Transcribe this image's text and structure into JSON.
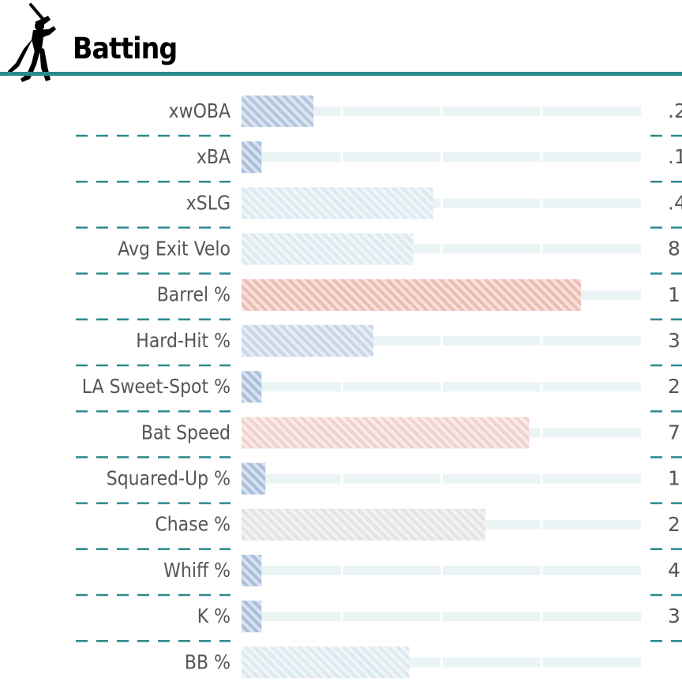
{
  "section": {
    "title": "Batting"
  },
  "colors": {
    "accent": "#2c8a8c",
    "track": "#eaf4f4",
    "separator": "#2c8a8c",
    "label": "#555555",
    "value_text": "#555555"
  },
  "chart_data": {
    "type": "bar",
    "orientation": "horizontal",
    "scale": "percentile",
    "xlim": [
      0,
      100
    ],
    "categories": [
      "xwOBA",
      "xBA",
      "xSLG",
      "Avg Exit Velo",
      "Barrel %",
      "Hard-Hit %",
      "LA Sweet-Spot %",
      "Bat Speed",
      "Squared-Up %",
      "Chase %",
      "Whiff %",
      "K %",
      "BB %"
    ],
    "values": [
      18,
      5,
      48,
      43,
      85,
      33,
      5,
      72,
      6,
      61,
      5,
      5,
      42
    ],
    "bar_colors": [
      "#b4c6de",
      "#a8bfdb",
      "#dce9ef",
      "#dce9ef",
      "#ecbdb2",
      "#c9d6e8",
      "#a8bfdb",
      "#f1d2cc",
      "#a8bfdb",
      "#e3e3e3",
      "#a8bfdb",
      "#a8bfdb",
      "#dce9ef"
    ],
    "value_labels": [
      ".2",
      ".1",
      ".4",
      "8",
      "1",
      "3",
      "2",
      "7",
      "1",
      "2",
      "4",
      "3",
      ""
    ]
  }
}
